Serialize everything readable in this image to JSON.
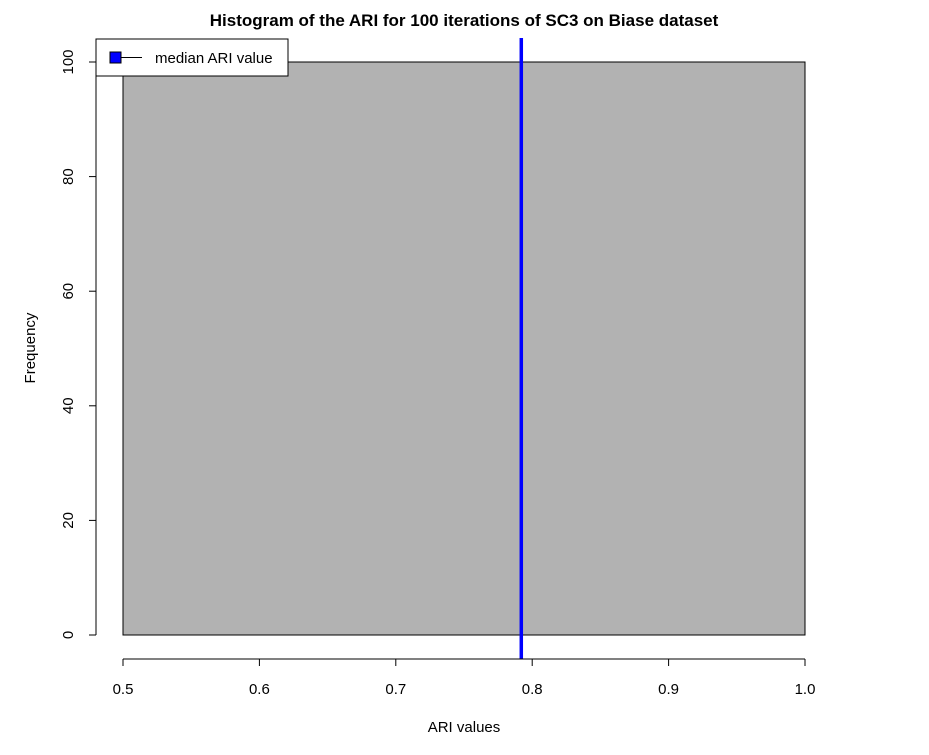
{
  "chart_data": {
    "type": "bar",
    "title": "Histogram of the ARI for 100 iterations of SC3 on Biase dataset",
    "xlabel": "ARI values",
    "ylabel": "Frequency",
    "xlim": [
      0.5,
      1.0
    ],
    "ylim": [
      0,
      100
    ],
    "xticks": [
      0.5,
      0.6,
      0.7,
      0.8,
      0.9,
      1.0
    ],
    "xtick_labels": [
      "0.5",
      "0.6",
      "0.7",
      "0.8",
      "0.9",
      "1.0"
    ],
    "yticks": [
      0,
      20,
      40,
      60,
      80,
      100
    ],
    "ytick_labels": [
      "0",
      "20",
      "40",
      "60",
      "80",
      "100"
    ],
    "bins": [
      {
        "x0": 0.5,
        "x1": 1.0,
        "count": 100
      }
    ],
    "bar_color": "#b2b2b2",
    "median_line": {
      "x": 0.792,
      "color": "#0000ff"
    },
    "legend": {
      "placement": "top-left",
      "entries": [
        {
          "label": "median ARI value",
          "color": "#0000ff"
        }
      ]
    },
    "grid": false
  }
}
